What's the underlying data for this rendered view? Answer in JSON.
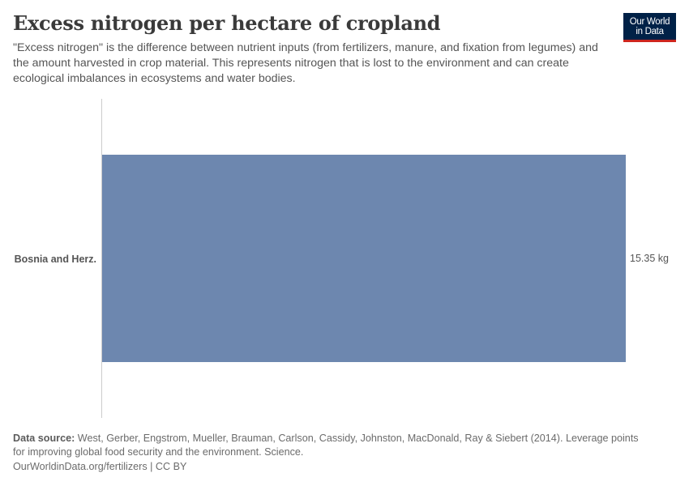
{
  "header": {
    "title": "Excess nitrogen per hectare of cropland",
    "subtitle": "\"Excess nitrogen\" is the difference between nutrient inputs (from fertilizers, manure, and fixation from legumes) and the amount harvested in crop material. This represents nitrogen that is lost to the environment and can create ecological imbalances in ecosystems and water bodies."
  },
  "logo": {
    "line1": "Our World",
    "line2": "in Data",
    "background": "#002147",
    "accent": "#ce261e"
  },
  "chart_data": {
    "type": "bar",
    "orientation": "horizontal",
    "title": "Excess nitrogen per hectare of cropland",
    "categories": [
      "Bosnia and Herz."
    ],
    "values": [
      15.35
    ],
    "unit": "kg",
    "value_labels": [
      "15.35 kg"
    ],
    "xlabel": "",
    "ylabel": "",
    "xlim": [
      0,
      15.35
    ],
    "grid": false,
    "legend": null,
    "bar_color": "#6d87af"
  },
  "footer": {
    "source_label": "Data source:",
    "source_text": " West, Gerber, Engstrom, Mueller, Brauman, Carlson, Cassidy, Johnston, MacDonald, Ray & Siebert (2014). Leverage points for improving global food security and the environment. Science.",
    "link_text": "OurWorldinData.org/fertilizers | CC BY"
  }
}
